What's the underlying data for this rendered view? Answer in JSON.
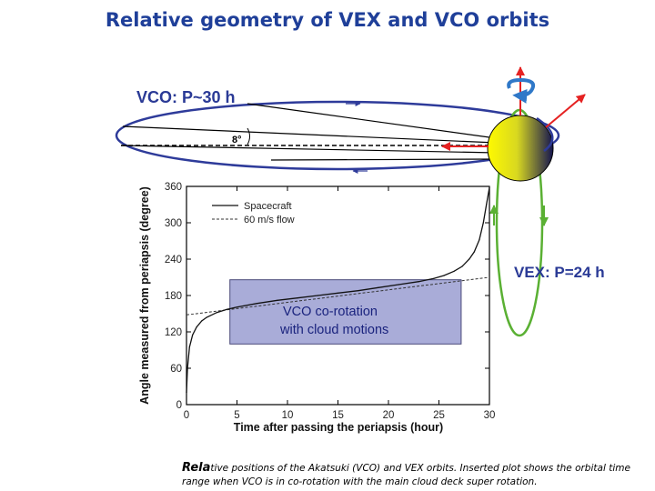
{
  "slide": {
    "title": "Relative geometry of VEX and VCO orbits"
  },
  "diagram": {
    "vco_label": "VCO: P~30 h",
    "vex_label": "VEX: P=24 h",
    "angle_label": "8°",
    "colors": {
      "vco_orbit": "#2e3b9a",
      "vex_orbit": "#5ab033",
      "arrow_red": "#e52222",
      "arrow_blue": "#2f78c8",
      "planet_light": "#fff600",
      "planet_dark": "#1a1a55"
    }
  },
  "chart_data": {
    "type": "line",
    "title": "",
    "xlabel": "Time after passing the periapsis (hour)",
    "ylabel": "Angle measured from periapsis (degree)",
    "xlim": [
      0,
      30
    ],
    "ylim": [
      0,
      360
    ],
    "xticks": [
      "0",
      "5",
      "10",
      "15",
      "20",
      "25",
      "30"
    ],
    "yticks": [
      "0",
      "60",
      "120",
      "180",
      "240",
      "300",
      "360"
    ],
    "legend": [
      "Spacecraft",
      "60 m/s flow"
    ],
    "series": [
      {
        "name": "Spacecraft",
        "style": "solid",
        "x": [
          0.0,
          0.1,
          0.3,
          0.6,
          1.0,
          1.5,
          2.0,
          3.0,
          4.0,
          5.0,
          7.0,
          9.0,
          11.0,
          13.0,
          15.0,
          17.0,
          19.0,
          21.0,
          23.0,
          24.5,
          25.5,
          26.5,
          27.3,
          28.0,
          28.5,
          29.0,
          29.4,
          29.7,
          30.0
        ],
        "y": [
          20,
          60,
          95,
          115,
          128,
          138,
          144,
          152,
          157,
          161,
          167,
          172,
          176,
          180,
          184,
          188,
          193,
          198,
          203,
          208,
          213,
          220,
          228,
          240,
          252,
          272,
          300,
          330,
          358
        ]
      },
      {
        "name": "60 m/s flow",
        "style": "dashed",
        "x": [
          0,
          30
        ],
        "y": [
          148,
          210
        ]
      }
    ],
    "annotation": {
      "lines": [
        "VCO co-rotation",
        "with cloud motions"
      ],
      "x_range": [
        4.3,
        27.2
      ],
      "y_range": [
        100,
        206
      ],
      "color": "#a9acd8"
    }
  },
  "caption": {
    "lead": "Rela",
    "lead_rest": "tive",
    "text": " positions of the Akatsuki (VCO) and VEX orbits. Inserted plot shows the orbital time range when VCO is in co-rotation with the main cloud deck super rotation."
  }
}
